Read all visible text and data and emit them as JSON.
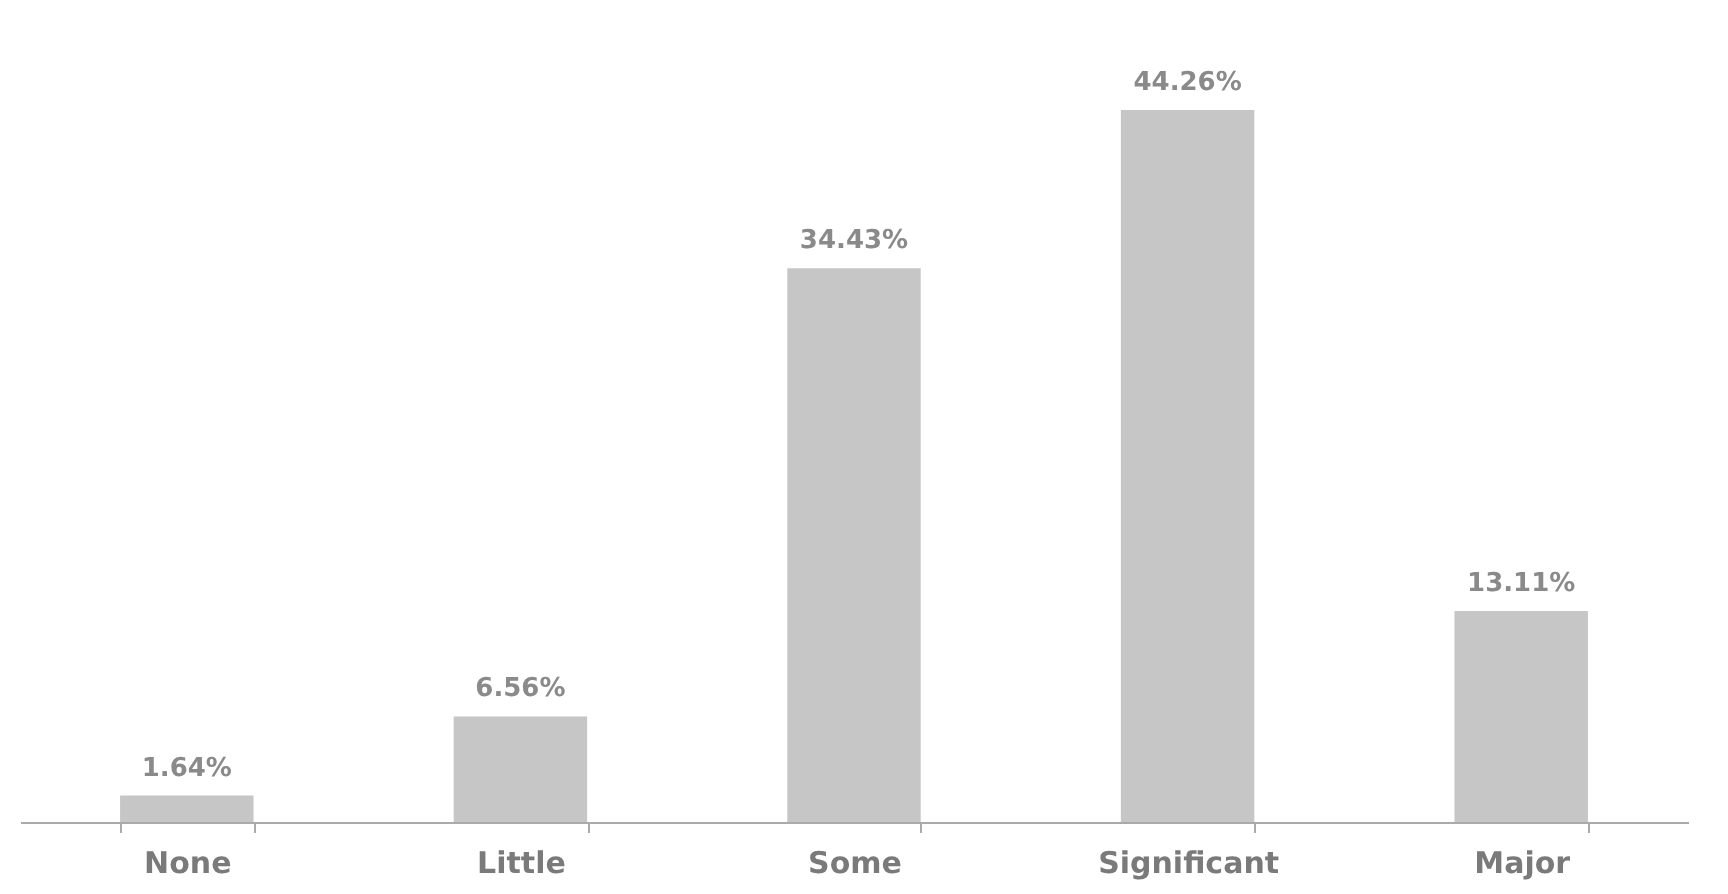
{
  "chart_data": {
    "type": "bar",
    "categories": [
      "None",
      "Little",
      "Some",
      "Significant",
      "Major"
    ],
    "values": [
      1.64,
      6.56,
      34.43,
      44.26,
      13.11
    ],
    "value_labels": [
      "1.64%",
      "6.56%",
      "34.43%",
      "44.26%",
      "13.11%"
    ],
    "color": "#c6c6c6"
  }
}
